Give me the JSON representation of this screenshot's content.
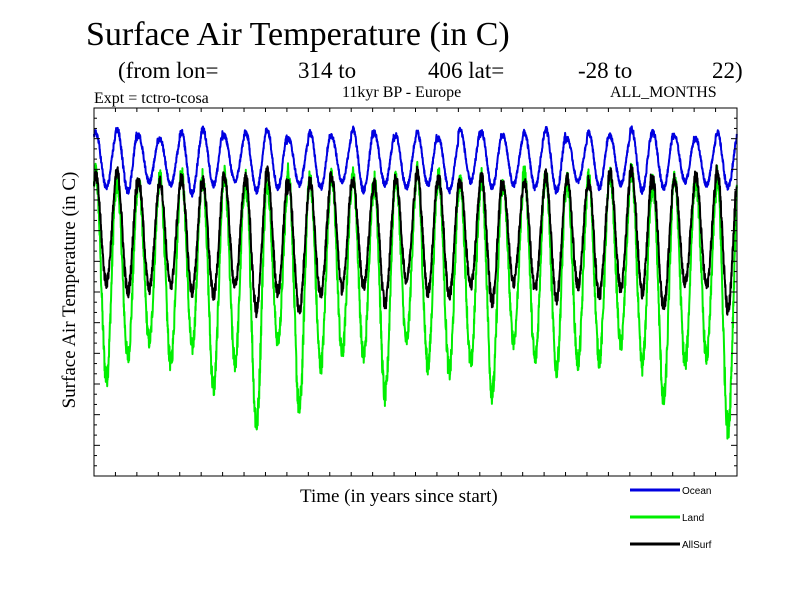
{
  "chart_data": {
    "type": "line",
    "title": "Surface Air Temperature (in C)",
    "subtitle": {
      "lon_label": "(from lon=",
      "lon_start": "314 to",
      "lon_end_lat": "406 lat=",
      "lat_start": "-28 to",
      "lat_end": "22)"
    },
    "experiment": "Expt = tctro-tcosa",
    "period": "11kyr BP - Europe",
    "months": "ALL_MONTHS",
    "xlabel": "Time (in years since start)",
    "ylabel": "Surface Air Temperature (in C)",
    "xlim": [
      0,
      30
    ],
    "ylim": [
      0,
      12
    ],
    "grid": false,
    "legend_position": "bottom-right",
    "n_cycles": 30,
    "samples_per_cycle": 12,
    "series": [
      {
        "name": "Ocean",
        "color": "#0000e0",
        "cycle_max": [
          11.2,
          11.3,
          11.1,
          11.0,
          11.2,
          11.3,
          11.1,
          11.2,
          11.3,
          11.0,
          11.2,
          11.1,
          11.3,
          11.2,
          11.1,
          11.2,
          11.0,
          11.3,
          11.2,
          11.1,
          11.2,
          11.3,
          11.0,
          11.2,
          11.1,
          11.3,
          11.2,
          11.1,
          11.0,
          11.2
        ],
        "cycle_min": [
          9.4,
          9.3,
          9.6,
          9.5,
          9.2,
          9.5,
          9.6,
          9.3,
          9.4,
          9.5,
          9.4,
          9.6,
          9.3,
          9.5,
          9.4,
          9.5,
          9.3,
          9.6,
          9.4,
          9.5,
          9.4,
          9.3,
          9.6,
          9.4,
          9.5,
          9.3,
          9.4,
          9.6,
          9.5,
          9.4
        ]
      },
      {
        "name": "Land",
        "color": "#00ee00",
        "cycle_max": [
          9.9,
          9.5,
          9.6,
          9.7,
          9.9,
          9.7,
          9.8,
          9.6,
          9.5,
          9.9,
          9.7,
          9.8,
          9.8,
          9.6,
          9.7,
          9.9,
          9.8,
          9.6,
          9.7,
          9.5,
          9.9,
          9.8,
          9.6,
          9.7,
          9.8,
          9.9,
          9.5,
          9.8,
          9.6,
          9.7
        ],
        "cycle_min": [
          3.2,
          3.9,
          4.4,
          3.7,
          4.2,
          2.9,
          3.7,
          1.7,
          4.4,
          2.2,
          3.6,
          4.0,
          3.9,
          2.6,
          4.4,
          3.6,
          3.4,
          3.7,
          2.7,
          4.4,
          3.8,
          3.5,
          3.7,
          3.8,
          4.3,
          3.6,
          2.5,
          3.7,
          3.9,
          1.6
        ]
      },
      {
        "name": "AllSurf",
        "color": "#000000",
        "cycle_max": [
          9.8,
          9.9,
          9.6,
          9.6,
          9.7,
          9.6,
          9.8,
          9.7,
          9.9,
          9.5,
          9.6,
          9.8,
          9.6,
          9.5,
          9.7,
          9.9,
          9.7,
          9.6,
          9.8,
          9.5,
          9.6,
          9.8,
          9.7,
          9.6,
          9.9,
          10.0,
          9.6,
          9.7,
          9.8,
          10.0
        ],
        "cycle_min": [
          6.3,
          6.0,
          6.1,
          6.2,
          6.0,
          5.9,
          6.2,
          5.4,
          6.0,
          5.4,
          5.9,
          6.1,
          6.2,
          5.6,
          6.4,
          6.0,
          5.9,
          6.2,
          5.7,
          6.3,
          6.1,
          5.8,
          6.2,
          5.9,
          6.1,
          6.0,
          5.5,
          6.3,
          6.2,
          5.4
        ]
      }
    ],
    "legend": [
      {
        "label": "Ocean",
        "color": "#0000e0"
      },
      {
        "label": "Land",
        "color": "#00ee00"
      },
      {
        "label": "AllSurf",
        "color": "#000000"
      }
    ]
  }
}
